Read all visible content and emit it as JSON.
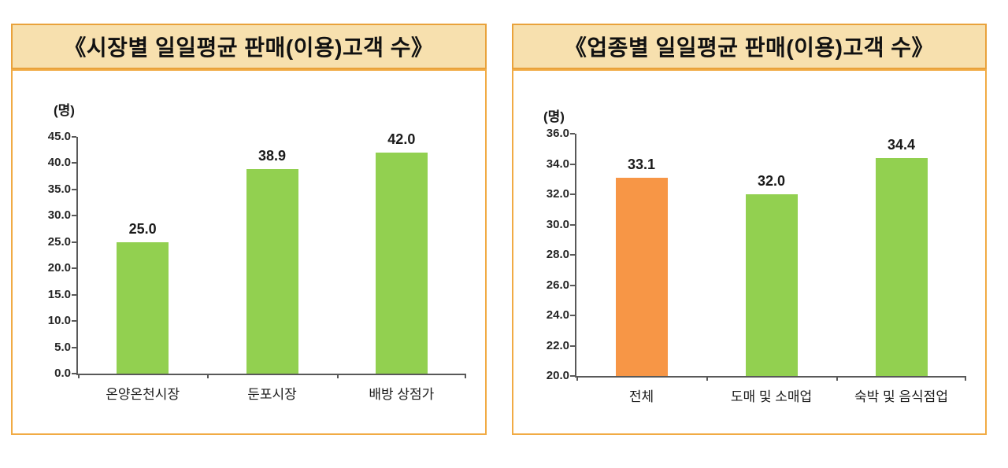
{
  "colors": {
    "title_background": "#F7E0AE",
    "title_border": "#E9A23B",
    "chart_box_border": "#F1AB44",
    "bar_green": "#92D050",
    "bar_orange": "#F79646",
    "axis": "#595959",
    "text": "#1a1a1a"
  },
  "chart_data": [
    {
      "type": "bar",
      "title": "《시장별 일일평균 판매(이용)고객 수》",
      "unit_label": "(명)",
      "categories": [
        "온양온천시장",
        "둔포시장",
        "배방 상점가"
      ],
      "values": [
        25.0,
        38.9,
        42.0
      ],
      "value_labels": [
        "25.0",
        "38.9",
        "42.0"
      ],
      "bar_colors": [
        "#92D050",
        "#92D050",
        "#92D050"
      ],
      "ylim": [
        0,
        45
      ],
      "ytick_step": 5,
      "ytick_labels": [
        "45.0",
        "40.0",
        "35.0",
        "30.0",
        "25.0",
        "20.0",
        "15.0",
        "10.0",
        "5.0",
        "0.0"
      ],
      "grid": false,
      "legend": "none"
    },
    {
      "type": "bar",
      "title": "《업종별 일일평균 판매(이용)고객 수》",
      "unit_label": "(명)",
      "categories": [
        "전체",
        "도매 및 소매업",
        "숙박 및 음식점업"
      ],
      "values": [
        33.1,
        32.0,
        34.4
      ],
      "value_labels": [
        "33.1",
        "32.0",
        "34.4"
      ],
      "bar_colors": [
        "#F79646",
        "#92D050",
        "#92D050"
      ],
      "ylim": [
        20,
        36
      ],
      "ytick_step": 2,
      "ytick_labels": [
        "36.0",
        "34.0",
        "32.0",
        "30.0",
        "28.0",
        "26.0",
        "24.0",
        "22.0",
        "20.0"
      ],
      "grid": false,
      "legend": "none"
    }
  ]
}
